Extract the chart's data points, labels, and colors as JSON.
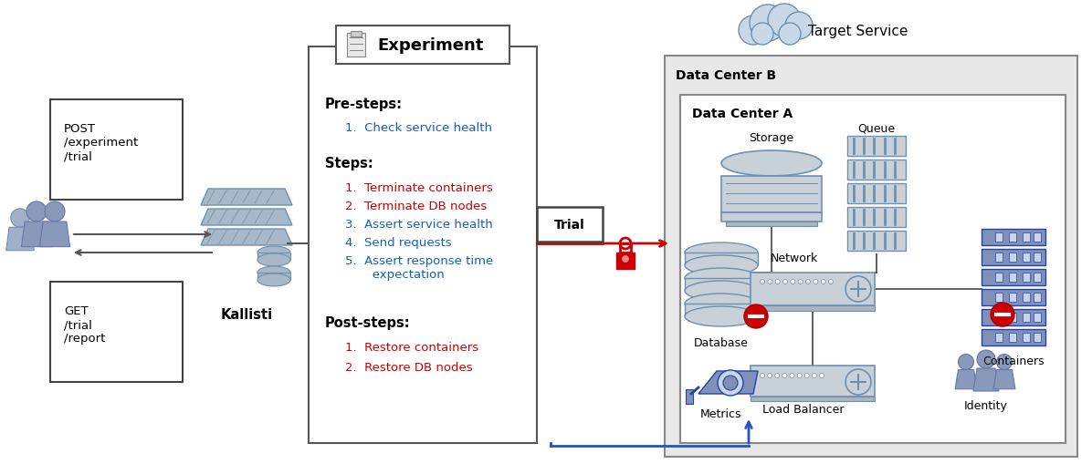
{
  "bg_color": "#ffffff",
  "kallisti_label": "Kallisti",
  "experiment_title": "Experiment",
  "pre_steps_label": "Pre-steps:",
  "pre_steps_items": [
    "1.  Check service health"
  ],
  "pre_steps_colors": [
    "#1460bd"
  ],
  "steps_label": "Steps:",
  "steps_items": [
    "1.  Terminate containers",
    "2.  Terminate DB nodes",
    "3.  Assert service health",
    "4.  Send requests",
    "5.  Assert response time\n       expectation"
  ],
  "steps_colors": [
    "#cc0000",
    "#cc0000",
    "#1460bd",
    "#1460bd",
    "#1460bd"
  ],
  "post_steps_label": "Post-steps:",
  "post_steps_items": [
    "1.  Restore containers",
    "2.  Restore DB nodes"
  ],
  "post_steps_colors": [
    "#cc0000",
    "#cc0000"
  ],
  "dc_b_label": "Data Center B",
  "dc_a_label": "Data Center A",
  "target_service_label": "Target Service",
  "red_color": "#cc0000",
  "blue_color": "#2255bb",
  "gray_fill": "#c8d0d8",
  "gray_stroke": "#7090b0",
  "dark_blue_fill": "#8090b8",
  "dark_blue_stroke": "#2244aa"
}
